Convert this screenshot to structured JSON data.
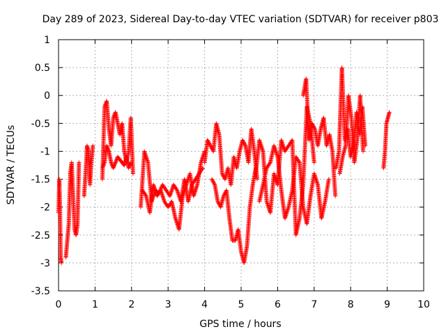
{
  "chart_data": {
    "type": "scatter",
    "title": "Day 289 of 2023, Sidereal Day-to-day VTEC variation (SDTVAR) for receiver p803",
    "xlabel": "GPS time / hours",
    "ylabel": "SDTVAR / TECUs",
    "xlim": [
      0,
      10
    ],
    "ylim": [
      -3.5,
      1
    ],
    "grid": true,
    "marker": "+",
    "series_color": "#ff0000",
    "x_ticks": [
      "0",
      "1",
      "2",
      "3",
      "4",
      "5",
      "6",
      "7",
      "8",
      "9",
      "10"
    ],
    "y_ticks": [
      "1",
      "0.5",
      "0",
      "-0.5",
      "-1",
      "-1.5",
      "-2",
      "-2.5",
      "-3",
      "-3.5"
    ],
    "series": [
      {
        "name": "SDTVAR",
        "segments": [
          {
            "x": [
              0.0,
              0.02,
              0.04,
              0.06,
              0.08
            ],
            "y": [
              -2.1,
              -1.5,
              -2.0,
              -2.9,
              -3.0
            ]
          },
          {
            "x": [
              0.2,
              0.24,
              0.28,
              0.32,
              0.36,
              0.4,
              0.44,
              0.48,
              0.52,
              0.56
            ],
            "y": [
              -2.9,
              -2.6,
              -2.3,
              -1.4,
              -1.2,
              -1.8,
              -2.4,
              -2.5,
              -2.3,
              -1.2
            ]
          },
          {
            "x": [
              0.7,
              0.74,
              0.78,
              0.82,
              0.86,
              0.9,
              0.94
            ],
            "y": [
              -1.8,
              -1.4,
              -0.9,
              -1.0,
              -1.6,
              -1.2,
              -0.9
            ]
          },
          {
            "x": [
              1.2,
              1.26,
              1.32,
              1.38,
              1.44,
              1.5,
              1.56,
              1.62,
              1.68,
              1.74,
              1.8,
              1.86,
              1.92,
              1.98,
              2.04
            ],
            "y": [
              -1.5,
              -0.2,
              -0.1,
              -0.6,
              -0.9,
              -0.4,
              -0.3,
              -0.5,
              -0.7,
              -0.5,
              -1.0,
              -1.2,
              -1.0,
              -0.4,
              -1.4
            ]
          },
          {
            "x": [
              1.2,
              1.26,
              1.32,
              1.38,
              1.44,
              1.5,
              1.56,
              1.62,
              1.68,
              1.74,
              1.8,
              1.86,
              1.92,
              1.98
            ],
            "y": [
              -1.3,
              -1.2,
              -0.9,
              -1.0,
              -1.2,
              -1.3,
              -1.2,
              -1.1,
              -1.15,
              -1.2,
              -1.25,
              -1.1,
              -1.3,
              -1.2
            ]
          },
          {
            "x": [
              2.25,
              2.35,
              2.45,
              2.55,
              2.65,
              2.75,
              2.85,
              2.95,
              3.05,
              3.15,
              3.25,
              3.35,
              3.45,
              3.55,
              3.65,
              3.75,
              3.85,
              3.95
            ],
            "y": [
              -2.0,
              -1.0,
              -1.2,
              -1.9,
              -1.7,
              -1.75,
              -1.6,
              -1.7,
              -1.8,
              -1.6,
              -1.7,
              -1.9,
              -1.5,
              -1.9,
              -1.6,
              -1.5,
              -1.4,
              -1.3
            ]
          },
          {
            "x": [
              2.3,
              2.4,
              2.5,
              2.6,
              2.7,
              2.8,
              2.9,
              3.0,
              3.1,
              3.2,
              3.3,
              3.4,
              3.5,
              3.6,
              3.7,
              3.8,
              3.9,
              4.0
            ],
            "y": [
              -1.7,
              -1.8,
              -2.1,
              -1.6,
              -1.8,
              -1.7,
              -1.9,
              -2.0,
              -1.9,
              -2.2,
              -2.4,
              -1.8,
              -1.6,
              -1.4,
              -1.8,
              -1.6,
              -1.2,
              -1.0
            ]
          },
          {
            "x": [
              4.0,
              4.08,
              4.16,
              4.24,
              4.32,
              4.4,
              4.48,
              4.56,
              4.64,
              4.72,
              4.8,
              4.88,
              4.96,
              5.04,
              5.12,
              5.2,
              5.28,
              5.36,
              5.44
            ],
            "y": [
              -1.2,
              -0.8,
              -0.9,
              -1.0,
              -0.5,
              -0.7,
              -1.4,
              -1.5,
              -1.3,
              -1.6,
              -1.1,
              -1.3,
              -1.0,
              -0.8,
              -0.9,
              -1.2,
              -0.6,
              -1.0,
              -1.5
            ]
          },
          {
            "x": [
              4.2,
              4.28,
              4.36,
              4.44,
              4.52,
              4.6,
              4.68,
              4.76,
              4.84,
              4.92,
              5.0,
              5.08,
              5.16,
              5.24,
              5.32,
              5.4
            ],
            "y": [
              -1.5,
              -1.6,
              -1.9,
              -2.0,
              -1.8,
              -1.7,
              -2.2,
              -2.6,
              -2.6,
              -2.4,
              -2.8,
              -3.0,
              -2.7,
              -2.0,
              -1.6,
              -1.3
            ]
          },
          {
            "x": [
              5.4,
              5.5,
              5.6,
              5.7,
              5.8,
              5.9,
              6.0,
              6.1,
              6.2,
              6.3,
              6.4,
              6.5,
              6.6,
              6.7,
              6.8,
              6.9,
              7.0
            ],
            "y": [
              -1.4,
              -0.8,
              -1.0,
              -1.9,
              -2.1,
              -1.4,
              -1.6,
              -0.8,
              -1.0,
              -0.9,
              -0.8,
              -2.5,
              -2.2,
              -1.6,
              -0.2,
              -0.5,
              -1.2
            ]
          },
          {
            "x": [
              5.5,
              5.6,
              5.7,
              5.8,
              5.9,
              6.0,
              6.1,
              6.2,
              6.3,
              6.4,
              6.5,
              6.6,
              6.7,
              6.8,
              6.9,
              7.0,
              7.1,
              7.2,
              7.3,
              7.4
            ],
            "y": [
              -1.9,
              -1.6,
              -1.3,
              -1.2,
              -0.9,
              -1.1,
              -1.7,
              -2.2,
              -2.0,
              -1.7,
              -1.1,
              -1.2,
              -2.0,
              -2.3,
              -1.8,
              -1.4,
              -1.6,
              -2.2,
              -1.9,
              -1.5
            ]
          },
          {
            "x": [
              6.7,
              6.78,
              6.86,
              6.94,
              7.02,
              7.1,
              7.18,
              7.26,
              7.34,
              7.42,
              7.5,
              7.58
            ],
            "y": [
              0.0,
              0.3,
              -0.8,
              -0.5,
              -0.6,
              -0.9,
              -0.6,
              -0.4,
              -0.9,
              -0.7,
              -1.0,
              -1.8
            ]
          },
          {
            "x": [
              7.6,
              7.68,
              7.76,
              7.84,
              7.92,
              8.0,
              8.08,
              8.16,
              8.24,
              8.32,
              8.4
            ],
            "y": [
              -1.3,
              -1.0,
              0.5,
              -0.8,
              -0.6,
              -1.1,
              -0.9,
              -0.3,
              -0.7,
              -0.2,
              -0.9
            ]
          },
          {
            "x": [
              7.7,
              7.78,
              7.86,
              7.94,
              8.02,
              8.1,
              8.18,
              8.26,
              8.34
            ],
            "y": [
              -1.4,
              -1.1,
              -0.9,
              0.0,
              -0.4,
              -1.2,
              -0.8,
              0.0,
              -1.0
            ]
          },
          {
            "x": [
              8.9,
              8.94,
              8.98,
              9.02,
              9.06
            ],
            "y": [
              -1.3,
              -1.0,
              -0.5,
              -0.4,
              -0.3
            ]
          }
        ]
      }
    ]
  }
}
